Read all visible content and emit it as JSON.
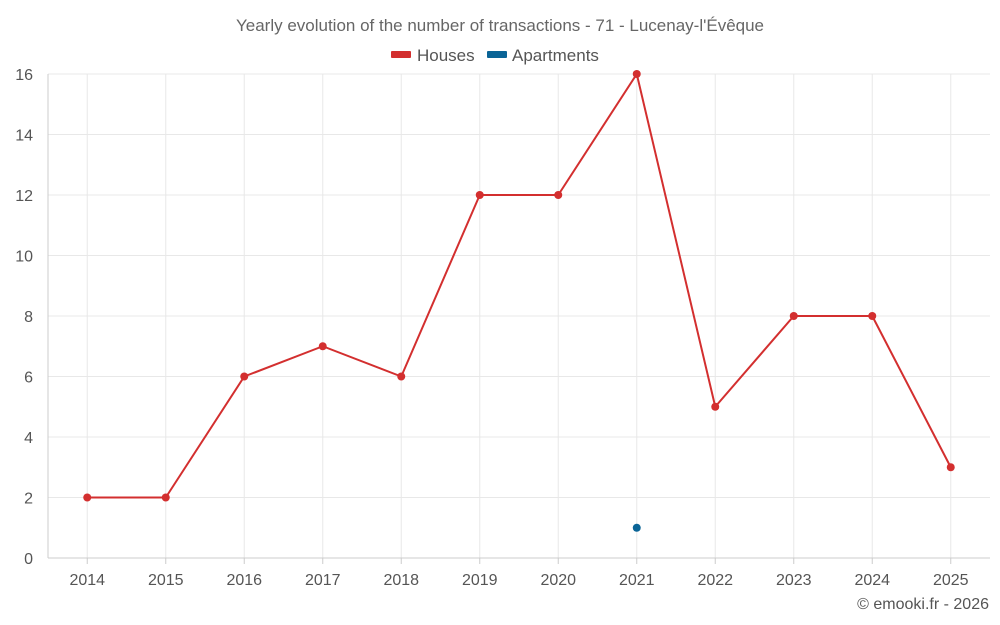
{
  "chart_data": {
    "type": "line",
    "title": "Yearly evolution of the number of transactions - 71 - Lucenay-l'Évêque",
    "categories": [
      "2014",
      "2015",
      "2016",
      "2017",
      "2018",
      "2019",
      "2020",
      "2021",
      "2022",
      "2023",
      "2024",
      "2025"
    ],
    "series": [
      {
        "name": "Houses",
        "color": "#d32f2f",
        "values": [
          2,
          2,
          6,
          7,
          6,
          12,
          12,
          16,
          5,
          8,
          8,
          3
        ]
      },
      {
        "name": "Apartments",
        "color": "#0a6496",
        "values": [
          null,
          null,
          null,
          null,
          null,
          null,
          null,
          1,
          null,
          null,
          null,
          null
        ]
      }
    ],
    "ylim": [
      0,
      16
    ],
    "yticks": [
      0,
      2,
      4,
      6,
      8,
      10,
      12,
      14,
      16
    ],
    "xlabel": "",
    "ylabel": "",
    "grid": true,
    "legend": "top-center"
  },
  "credit": "© emooki.fr - 2026"
}
